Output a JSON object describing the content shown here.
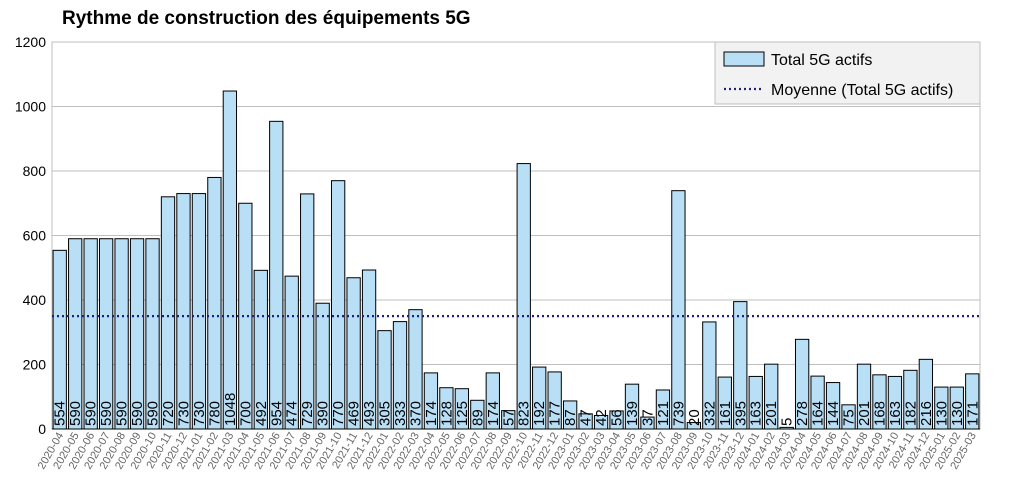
{
  "chart_data": {
    "type": "bar",
    "title": "Rythme de construction des équipements 5G",
    "xlabel": "",
    "ylabel": "",
    "ylim": [
      0,
      1200
    ],
    "yticks": [
      0,
      200,
      400,
      600,
      800,
      1000,
      1200
    ],
    "grid": true,
    "legend_position": "top-right",
    "average_value": 350,
    "colors": {
      "bar_fill": "#b8dff5",
      "bar_stroke": "#000000",
      "average_line": "#1f1f7a",
      "grid": "#bfbfbf"
    },
    "series": [
      {
        "name": "Total 5G actifs",
        "kind": "bar"
      },
      {
        "name": "Moyenne (Total 5G actifs)",
        "kind": "dotted-line"
      }
    ],
    "categories": [
      "2020-04",
      "2020-05",
      "2020-06",
      "2020-07",
      "2020-08",
      "2020-09",
      "2020-10",
      "2020-11",
      "2020-12",
      "2021-01",
      "2021-02",
      "2021-03",
      "2021-04",
      "2021-05",
      "2021-06",
      "2021-07",
      "2021-08",
      "2021-09",
      "2021-10",
      "2021-11",
      "2021-12",
      "2022-01",
      "2022-02",
      "2022-03",
      "2022-04",
      "2022-05",
      "2022-06",
      "2022-07",
      "2022-08",
      "2022-09",
      "2022-10",
      "2022-11",
      "2022-12",
      "2023-01",
      "2023-02",
      "2023-03",
      "2023-04",
      "2023-05",
      "2023-06",
      "2023-07",
      "2023-08",
      "2023-09",
      "2023-10",
      "2023-11",
      "2023-12",
      "2024-01",
      "2024-02",
      "2024-03",
      "2024-04",
      "2024-05",
      "2024-06",
      "2024-07",
      "2024-08",
      "2024-09",
      "2024-10",
      "2024-11",
      "2024-12",
      "2025-01",
      "2025-02",
      "2025-03"
    ],
    "values": [
      554,
      590,
      590,
      590,
      590,
      590,
      590,
      720,
      730,
      730,
      780,
      1048,
      700,
      492,
      954,
      474,
      729,
      390,
      770,
      469,
      493,
      305,
      333,
      370,
      174,
      128,
      125,
      89,
      174,
      57,
      823,
      192,
      177,
      87,
      47,
      42,
      56,
      139,
      37,
      121,
      739,
      20,
      332,
      161,
      395,
      163,
      201,
      5,
      278,
      164,
      144,
      75,
      201,
      168,
      163,
      182,
      216,
      130,
      130,
      171
    ]
  }
}
